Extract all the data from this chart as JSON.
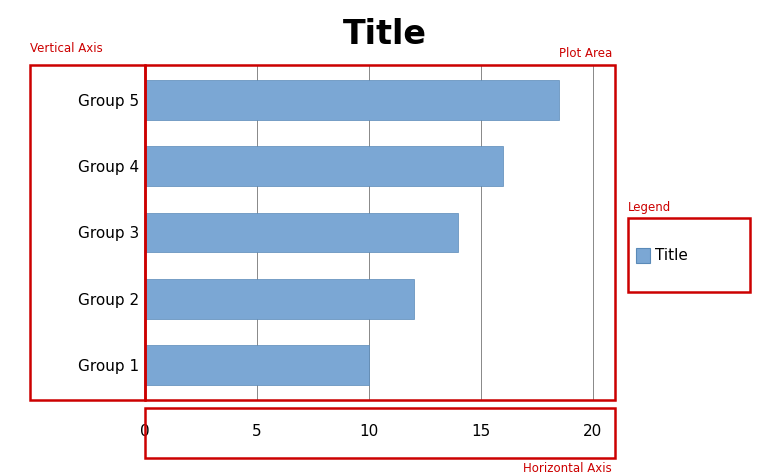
{
  "title": "Title",
  "title_fontsize": 24,
  "title_fontweight": "bold",
  "categories": [
    "Group 1",
    "Group 2",
    "Group 3",
    "Group 4",
    "Group 5"
  ],
  "values": [
    10,
    12,
    14,
    16,
    18.5
  ],
  "bar_color": "#7BA7D4",
  "bar_edge_color": "#5A8AB8",
  "xlim": [
    0,
    21
  ],
  "xticks": [
    0,
    5,
    10,
    15,
    20
  ],
  "grid_color": "#888888",
  "background_color": "#ffffff",
  "plot_bg_color": "#ffffff",
  "label_vertical_axis": "Vertical Axis",
  "label_horizontal_axis": "Horizontal Axis",
  "label_plot_area": "Plot Area",
  "label_legend": "Legend",
  "legend_entry": "Title",
  "red_color": "#CC0000",
  "annotation_fontsize": 8.5,
  "legend_fontsize": 11,
  "axis_tick_fontsize": 11,
  "group_label_fontsize": 11,
  "red_lw": 1.8
}
